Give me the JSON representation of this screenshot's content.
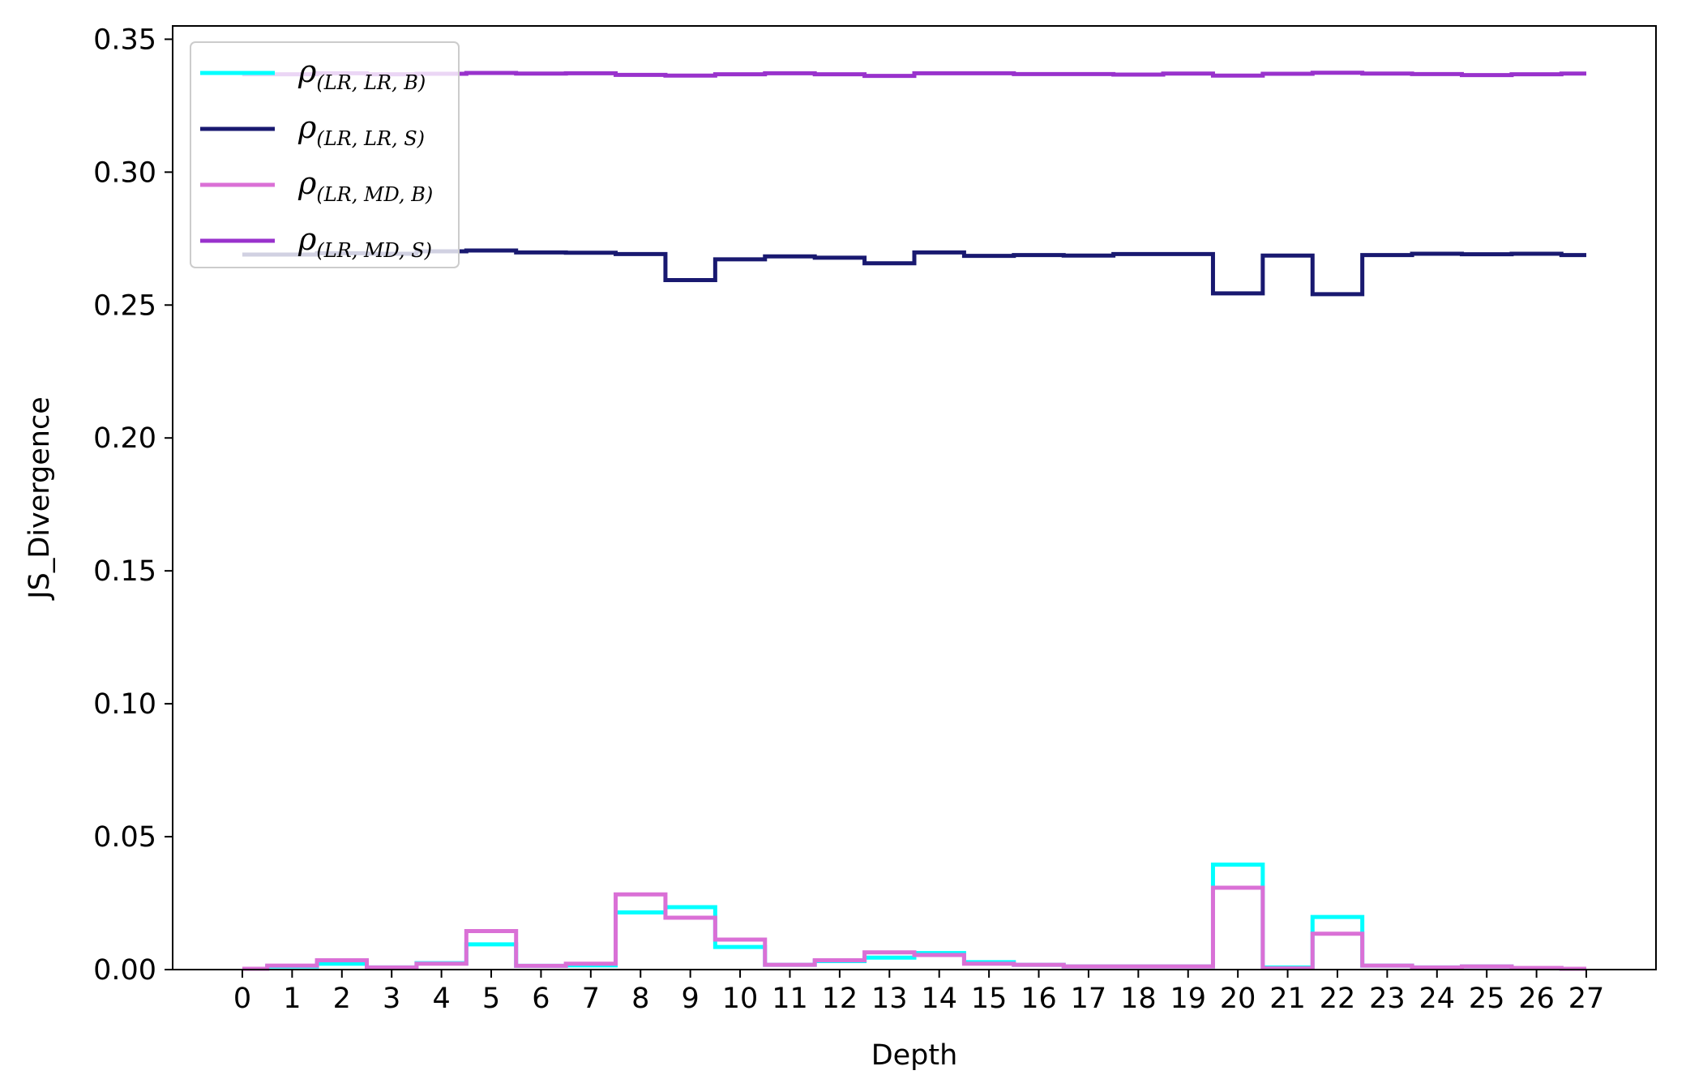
{
  "chart_data": {
    "type": "line",
    "drawstyle": "steps-mid",
    "title": "",
    "xlabel": "Depth",
    "ylabel": "JS_Divergence",
    "x": [
      0,
      1,
      2,
      3,
      4,
      5,
      6,
      7,
      8,
      9,
      10,
      11,
      12,
      13,
      14,
      15,
      16,
      17,
      18,
      19,
      20,
      21,
      22,
      23,
      24,
      25,
      26,
      27
    ],
    "x_ticks": [
      "0",
      "1",
      "2",
      "3",
      "4",
      "5",
      "6",
      "7",
      "8",
      "9",
      "10",
      "11",
      "12",
      "13",
      "14",
      "15",
      "16",
      "17",
      "18",
      "19",
      "20",
      "21",
      "22",
      "23",
      "24",
      "25",
      "26",
      "27"
    ],
    "xlim": [
      -1.4,
      28.4
    ],
    "ylim": [
      0,
      0.355
    ],
    "y_ticks": [
      "0.00",
      "0.05",
      "0.10",
      "0.15",
      "0.20",
      "0.25",
      "0.30",
      "0.35"
    ],
    "y_tick_values": [
      0,
      0.05,
      0.1,
      0.15,
      0.2,
      0.25,
      0.3,
      0.35
    ],
    "grid": false,
    "legend": {
      "placement": "upper-left"
    },
    "series": [
      {
        "name": "ρ(LR, LR, B)",
        "name_base": "ρ",
        "name_sub": "(LR, LR, B)",
        "color": "#00ffff",
        "values": [
          0.0003,
          0.0012,
          0.0022,
          0.0008,
          0.0024,
          0.0095,
          0.0014,
          0.0016,
          0.0215,
          0.0235,
          0.0085,
          0.0018,
          0.0032,
          0.0045,
          0.0062,
          0.0028,
          0.0018,
          0.0012,
          0.0012,
          0.0012,
          0.0395,
          0.0008,
          0.0198,
          0.0015,
          0.0008,
          0.0012,
          0.0006,
          0.0003
        ]
      },
      {
        "name": "ρ(LR, LR, S)",
        "name_base": "ρ",
        "name_sub": "(LR, LR, S)",
        "color": "#191970",
        "values": [
          0.269,
          0.269,
          0.2695,
          0.2693,
          0.2702,
          0.2705,
          0.2698,
          0.2697,
          0.2692,
          0.2594,
          0.2672,
          0.2683,
          0.2678,
          0.2657,
          0.2698,
          0.2685,
          0.2688,
          0.2686,
          0.2692,
          0.2692,
          0.2544,
          0.2686,
          0.2541,
          0.2688,
          0.2693,
          0.2691,
          0.2693,
          0.2688
        ]
      },
      {
        "name": "ρ(LR, MD, B)",
        "name_base": "ρ",
        "name_sub": "(LR, MD, B)",
        "color": "#da70d6",
        "values": [
          0.0003,
          0.0015,
          0.0035,
          0.0008,
          0.0022,
          0.0145,
          0.0014,
          0.0022,
          0.0283,
          0.0195,
          0.0113,
          0.0018,
          0.0035,
          0.0065,
          0.0055,
          0.0022,
          0.0018,
          0.0012,
          0.0012,
          0.0012,
          0.0308,
          0.0005,
          0.0135,
          0.0015,
          0.0008,
          0.0012,
          0.0006,
          0.0003
        ]
      },
      {
        "name": "ρ(LR, MD, S)",
        "name_base": "ρ",
        "name_sub": "(LR, MD, S)",
        "color": "#9932cc",
        "values": [
          0.3368,
          0.3368,
          0.3372,
          0.3368,
          0.337,
          0.3373,
          0.3371,
          0.3372,
          0.3366,
          0.3363,
          0.3368,
          0.3372,
          0.3368,
          0.3362,
          0.3372,
          0.3372,
          0.3369,
          0.3369,
          0.3367,
          0.3371,
          0.3363,
          0.337,
          0.3374,
          0.3371,
          0.3369,
          0.3365,
          0.3368,
          0.3371
        ]
      }
    ]
  }
}
